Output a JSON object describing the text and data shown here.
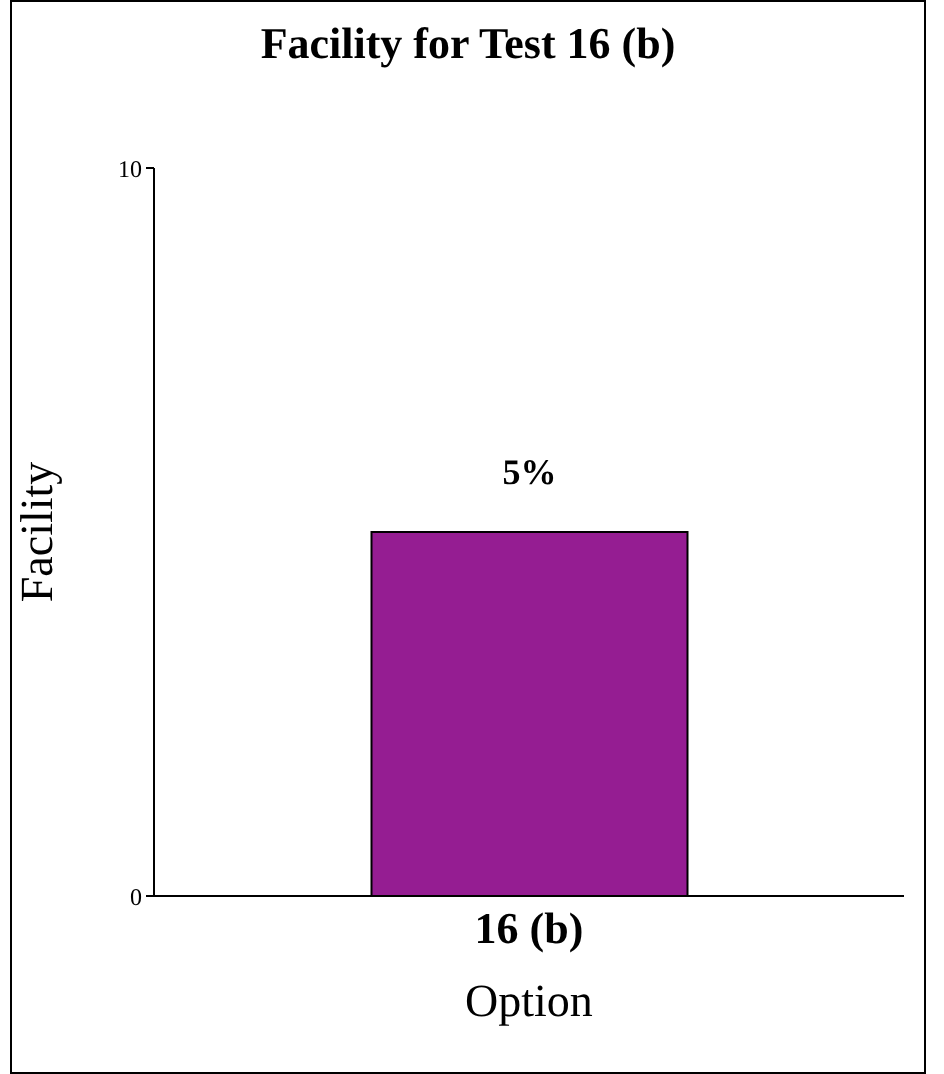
{
  "chart_data": {
    "type": "bar",
    "title": "Facility for Test 16 (b)",
    "categories": [
      "16 (b)"
    ],
    "values": [
      5
    ],
    "value_labels": [
      "5%"
    ],
    "color": "#951d92",
    "xlabel": "Option",
    "ylabel": "Facility",
    "ylim": [
      0,
      10
    ],
    "yticks": [
      0,
      10
    ],
    "grid": false
  }
}
